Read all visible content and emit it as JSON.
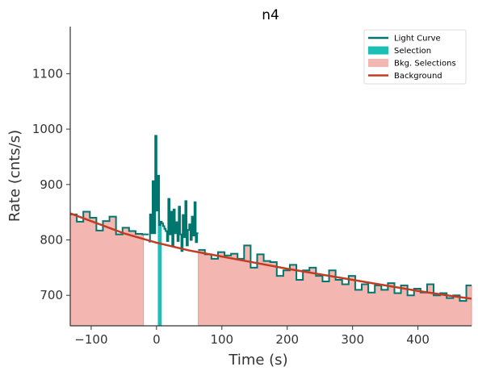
{
  "chart_data": {
    "type": "line",
    "title": "n4",
    "xlabel": "Time (s)",
    "ylabel": "Rate (cnts/s)",
    "xlim": [
      -132,
      482
    ],
    "ylim": [
      645,
      1185
    ],
    "xticks": [
      -100,
      0,
      100,
      200,
      300,
      400
    ],
    "yticks": [
      700,
      800,
      900,
      1000,
      1100
    ],
    "xtick_labels": [
      "−100",
      "0",
      "100",
      "200",
      "300",
      "400"
    ],
    "ytick_labels": [
      "700",
      "800",
      "900",
      "1000",
      "1100"
    ],
    "legend": {
      "placement": "top-right",
      "entries": [
        {
          "label": "Light Curve",
          "color": "#00776e",
          "kind": "line"
        },
        {
          "label": "Selection",
          "color": "#1bbfb5",
          "kind": "patch"
        },
        {
          "label": "Bkg. Selections",
          "color": "#f4b6b0",
          "kind": "patch"
        },
        {
          "label": "Background",
          "color": "#c23b22",
          "kind": "line"
        }
      ]
    },
    "colors": {
      "light_curve": "#00776e",
      "selection": "#1bbfb5",
      "bkg_fill": "#f4b6b0",
      "bkg_edge": "#e89a92",
      "background": "#c23b22"
    },
    "series": [
      {
        "name": "Light Curve",
        "step_edges": [
          -132,
          -122,
          -112,
          -102,
          -92,
          -82,
          -72,
          -62,
          -52,
          -42,
          -32,
          -22,
          -12
        ],
        "step_values": [
          846,
          833,
          851,
          840,
          817,
          834,
          842,
          810,
          822,
          816,
          811,
          810
        ],
        "edges": [
          -12,
          -10,
          -8,
          -6,
          -4,
          -2,
          0,
          2,
          4,
          6,
          8,
          10,
          12,
          14,
          16,
          18,
          20,
          22,
          24,
          26,
          28,
          30,
          32,
          34,
          36,
          38,
          40,
          42,
          44,
          46,
          48,
          50,
          52,
          54,
          56,
          58,
          60,
          62,
          64
        ],
        "values": [
          797,
          846,
          812,
          906,
          812,
          988,
          853,
          916,
          827,
          833,
          830,
          825,
          820,
          816,
          798,
          874,
          810,
          851,
          790,
          855,
          812,
          832,
          798,
          860,
          810,
          780,
          845,
          805,
          870,
          790,
          818,
          828,
          800,
          842,
          808,
          868,
          796,
          812
        ],
        "step_edges_2": [
          64,
          74,
          84,
          94,
          104,
          114,
          124,
          134,
          144,
          154,
          164,
          174,
          184,
          194,
          204,
          214,
          224,
          234,
          244,
          254,
          264,
          274,
          284,
          294,
          304,
          314,
          324,
          334,
          344,
          354,
          364,
          374,
          384,
          394,
          404,
          414,
          424,
          434,
          444,
          454,
          464,
          474,
          482
        ],
        "step_values_2": [
          782,
          774,
          766,
          778,
          772,
          775,
          766,
          790,
          750,
          774,
          762,
          760,
          735,
          745,
          755,
          728,
          745,
          750,
          735,
          725,
          745,
          728,
          720,
          735,
          710,
          720,
          705,
          718,
          710,
          722,
          704,
          718,
          700,
          712,
          705,
          720,
          700,
          704,
          695,
          700,
          690,
          718
        ]
      },
      {
        "name": "Background",
        "x": [
          -132,
          -100,
          -50,
          0,
          50,
          100,
          150,
          200,
          250,
          300,
          350,
          400,
          450,
          482
        ],
        "y": [
          848,
          834,
          812,
          795,
          781,
          770,
          759,
          748,
          738,
          728,
          718,
          708,
          699,
          694
        ]
      }
    ],
    "selection": {
      "x_start": 2,
      "x_end": 8
    },
    "bkg_selections": [
      {
        "x_start": -132,
        "x_end": -20
      },
      {
        "x_start": 62,
        "x_end": 482
      }
    ]
  }
}
